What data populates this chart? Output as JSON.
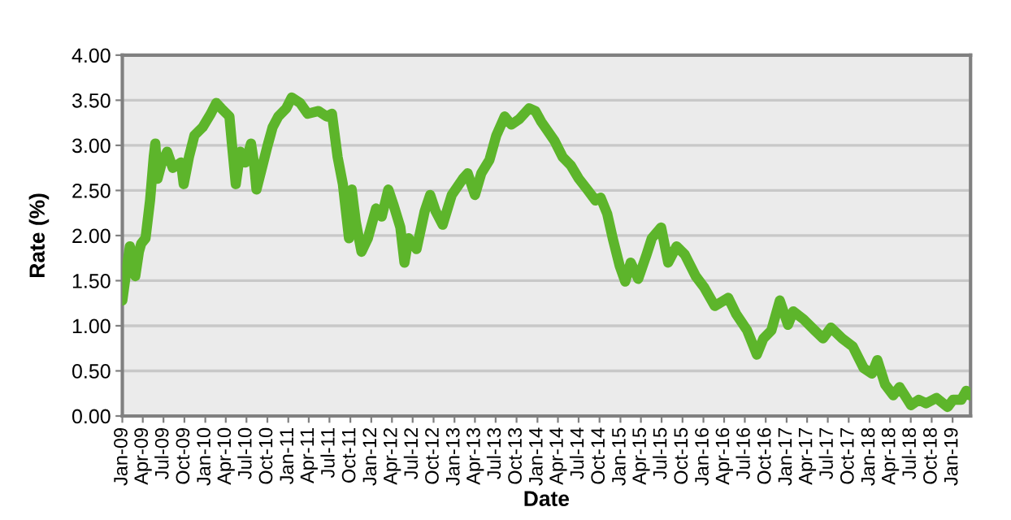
{
  "chart_data": {
    "type": "line",
    "xlabel": "Date",
    "ylabel": "Rate (%)",
    "series": [
      {
        "color": "#5db52b",
        "x": [
          "2009-01-01",
          "2009-01-22",
          "2009-02-03",
          "2009-02-27",
          "2009-03-15",
          "2009-03-25",
          "2009-04-13",
          "2009-05-03",
          "2009-05-19",
          "2009-05-26",
          "2009-06-05",
          "2009-06-24",
          "2009-07-17",
          "2009-08-11",
          "2009-09-16",
          "2009-09-28",
          "2009-10-21",
          "2009-11-14",
          "2009-12-20",
          "2010-01-25",
          "2010-02-18",
          "2010-03-12",
          "2010-04-17",
          "2010-04-29",
          "2010-05-15",
          "2010-06-04",
          "2010-06-27",
          "2010-07-21",
          "2010-08-03",
          "2010-08-14",
          "2010-09-07",
          "2010-10-01",
          "2010-10-24",
          "2010-11-18",
          "2010-12-23",
          "2011-01-16",
          "2011-02-22",
          "2011-03-27",
          "2011-05-14",
          "2011-06-19",
          "2011-07-12",
          "2011-08-06",
          "2011-08-29",
          "2011-09-25",
          "2011-10-07",
          "2011-10-25",
          "2011-11-19",
          "2011-12-17",
          "2012-01-22",
          "2012-02-16",
          "2012-03-16",
          "2012-04-09",
          "2012-05-08",
          "2012-05-26",
          "2012-06-13",
          "2012-07-18",
          "2012-08-23",
          "2012-09-16",
          "2012-10-10",
          "2012-11-10",
          "2012-12-20",
          "2013-02-07",
          "2013-02-28",
          "2013-04-01",
          "2013-04-29",
          "2013-06-04",
          "2013-07-04",
          "2013-08-10",
          "2013-09-08",
          "2013-10-13",
          "2013-11-25",
          "2013-12-23",
          "2014-01-18",
          "2014-02-12",
          "2014-03-17",
          "2014-04-22",
          "2014-05-27",
          "2014-07-02",
          "2014-08-08",
          "2014-09-13",
          "2014-10-06",
          "2014-11-04",
          "2014-11-28",
          "2014-12-28",
          "2015-01-22",
          "2015-02-15",
          "2015-03-20",
          "2015-04-26",
          "2015-05-19",
          "2015-06-29",
          "2015-07-30",
          "2015-09-05",
          "2015-10-11",
          "2015-11-28",
          "2016-01-03",
          "2016-02-20",
          "2016-04-19",
          "2016-05-24",
          "2016-07-11",
          "2016-08-23",
          "2016-09-21",
          "2016-10-26",
          "2016-12-02",
          "2017-01-07",
          "2017-01-30",
          "2017-03-17",
          "2017-05-04",
          "2017-06-10",
          "2017-07-15",
          "2017-09-02",
          "2017-10-19",
          "2017-12-06",
          "2018-01-11",
          "2018-02-04",
          "2018-03-10",
          "2018-04-15",
          "2018-05-13",
          "2018-07-02",
          "2018-08-05",
          "2018-09-06",
          "2018-10-22",
          "2018-12-10",
          "2019-01-03",
          "2019-02-08",
          "2019-03-02",
          "2019-03-18"
        ],
        "values": [
          1.28,
          1.67,
          1.88,
          1.55,
          1.82,
          1.91,
          1.97,
          2.39,
          2.87,
          3.02,
          2.63,
          2.81,
          2.93,
          2.75,
          2.81,
          2.57,
          2.87,
          3.11,
          3.2,
          3.35,
          3.47,
          3.41,
          3.32,
          2.99,
          2.57,
          2.93,
          2.81,
          3.02,
          2.81,
          2.51,
          2.75,
          2.99,
          3.2,
          3.32,
          3.41,
          3.53,
          3.47,
          3.35,
          3.38,
          3.32,
          3.35,
          2.87,
          2.57,
          1.97,
          2.51,
          2.15,
          1.82,
          1.97,
          2.3,
          2.21,
          2.51,
          2.33,
          2.09,
          1.7,
          1.97,
          1.85,
          2.27,
          2.45,
          2.27,
          2.12,
          2.45,
          2.63,
          2.69,
          2.45,
          2.69,
          2.84,
          3.11,
          3.32,
          3.23,
          3.29,
          3.41,
          3.38,
          3.26,
          3.17,
          3.05,
          2.87,
          2.78,
          2.63,
          2.51,
          2.39,
          2.42,
          2.24,
          1.97,
          1.67,
          1.49,
          1.7,
          1.52,
          1.79,
          1.97,
          2.09,
          1.7,
          1.88,
          1.79,
          1.55,
          1.43,
          1.22,
          1.31,
          1.13,
          0.95,
          0.68,
          0.86,
          0.95,
          1.28,
          1.01,
          1.16,
          1.07,
          0.95,
          0.86,
          0.98,
          0.86,
          0.77,
          0.53,
          0.47,
          0.62,
          0.35,
          0.23,
          0.32,
          0.12,
          0.18,
          0.14,
          0.2,
          0.1,
          0.18,
          0.18,
          0.28,
          0.23
        ]
      }
    ],
    "xlim": [
      "2009-01-01",
      "2019-03-21"
    ],
    "xticks": [
      {
        "value": "2009-01",
        "label": "Jan-09"
      },
      {
        "value": "2009-04",
        "label": "Apr-09"
      },
      {
        "value": "2009-07",
        "label": "Jul-09"
      },
      {
        "value": "2009-10",
        "label": "Oct-09"
      },
      {
        "value": "2010-01",
        "label": "Jan-10"
      },
      {
        "value": "2010-04",
        "label": "Apr-10"
      },
      {
        "value": "2010-07",
        "label": "Jul-10"
      },
      {
        "value": "2010-10",
        "label": "Oct-10"
      },
      {
        "value": "2011-01",
        "label": "Jan-11"
      },
      {
        "value": "2011-04",
        "label": "Apr-11"
      },
      {
        "value": "2011-07",
        "label": "Jul-11"
      },
      {
        "value": "2011-10",
        "label": "Oct-11"
      },
      {
        "value": "2012-01",
        "label": "Jan-12"
      },
      {
        "value": "2012-04",
        "label": "Apr-12"
      },
      {
        "value": "2012-07",
        "label": "Jul-12"
      },
      {
        "value": "2012-10",
        "label": "Oct-12"
      },
      {
        "value": "2013-01",
        "label": "Jan-13"
      },
      {
        "value": "2013-04",
        "label": "Apr-13"
      },
      {
        "value": "2013-07",
        "label": "Jul-13"
      },
      {
        "value": "2013-10",
        "label": "Oct-13"
      },
      {
        "value": "2014-01",
        "label": "Jan-14"
      },
      {
        "value": "2014-04",
        "label": "Apr-14"
      },
      {
        "value": "2014-07",
        "label": "Jul-14"
      },
      {
        "value": "2014-10",
        "label": "Oct-14"
      },
      {
        "value": "2015-01",
        "label": "Jan-15"
      },
      {
        "value": "2015-04",
        "label": "Apr-15"
      },
      {
        "value": "2015-07",
        "label": "Jul-15"
      },
      {
        "value": "2015-10",
        "label": "Oct-15"
      },
      {
        "value": "2016-01",
        "label": "Jan-16"
      },
      {
        "value": "2016-04",
        "label": "Apr-16"
      },
      {
        "value": "2016-07",
        "label": "Jul-16"
      },
      {
        "value": "2016-10",
        "label": "Oct-16"
      },
      {
        "value": "2017-01",
        "label": "Jan-17"
      },
      {
        "value": "2017-04",
        "label": "Apr-17"
      },
      {
        "value": "2017-07",
        "label": "Jul-17"
      },
      {
        "value": "2017-10",
        "label": "Oct-17"
      },
      {
        "value": "2018-01",
        "label": "Jan-18"
      },
      {
        "value": "2018-04",
        "label": "Apr-18"
      },
      {
        "value": "2018-07",
        "label": "Jul-18"
      },
      {
        "value": "2018-10",
        "label": "Oct-18"
      },
      {
        "value": "2019-01",
        "label": "Jan-19"
      }
    ],
    "ylim": [
      0,
      4
    ],
    "yticks": [
      {
        "value": 0,
        "label": "0.00"
      },
      {
        "value": 0.5,
        "label": "0.50"
      },
      {
        "value": 1,
        "label": "1.00"
      },
      {
        "value": 1.5,
        "label": "1.50"
      },
      {
        "value": 2,
        "label": "2.00"
      },
      {
        "value": 2.5,
        "label": "2.50"
      },
      {
        "value": 3,
        "label": "3.00"
      },
      {
        "value": 3.5,
        "label": "3.50"
      },
      {
        "value": 4,
        "label": "4.00"
      }
    ],
    "grid": "y",
    "marker": "none",
    "line_style": "solid"
  }
}
